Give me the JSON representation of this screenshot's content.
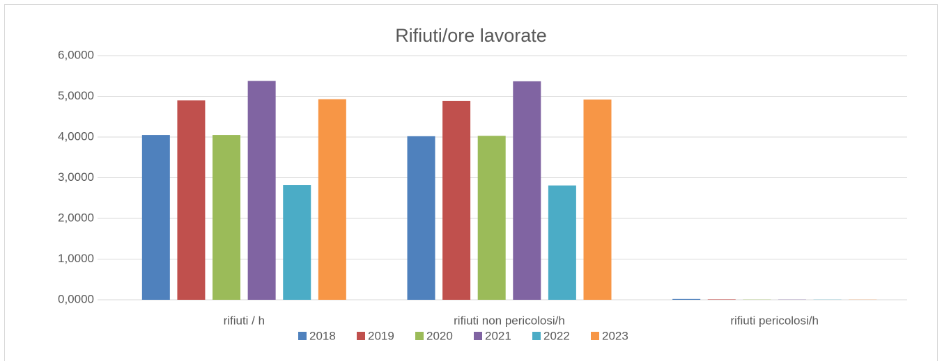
{
  "chart_data": {
    "type": "bar",
    "title": "Rifiuti/ore lavorate",
    "categories": [
      "rifiuti / h",
      "rifiuti non pericolosi/h",
      "rifiuti pericolosi/h"
    ],
    "series": [
      {
        "name": "2018",
        "color": "#4f81bd",
        "values": [
          4.05,
          4.02,
          0.02
        ]
      },
      {
        "name": "2019",
        "color": "#c0504d",
        "values": [
          4.9,
          4.89,
          0.01
        ]
      },
      {
        "name": "2020",
        "color": "#9bbb59",
        "values": [
          4.05,
          4.03,
          0.005
        ]
      },
      {
        "name": "2021",
        "color": "#8064a2",
        "values": [
          5.38,
          5.37,
          0.005
        ]
      },
      {
        "name": "2022",
        "color": "#4bacc6",
        "values": [
          2.82,
          2.81,
          0.004
        ]
      },
      {
        "name": "2023",
        "color": "#f79646",
        "values": [
          4.93,
          4.92,
          0.004
        ]
      }
    ],
    "ylim": [
      0,
      6
    ],
    "yticks": [
      {
        "value": 0,
        "label": "0,0000"
      },
      {
        "value": 1,
        "label": "1,0000"
      },
      {
        "value": 2,
        "label": "2,0000"
      },
      {
        "value": 3,
        "label": "3,0000"
      },
      {
        "value": 4,
        "label": "4,0000"
      },
      {
        "value": 5,
        "label": "5,0000"
      },
      {
        "value": 6,
        "label": "6,0000"
      }
    ],
    "grid": true,
    "legend": "bottom"
  }
}
